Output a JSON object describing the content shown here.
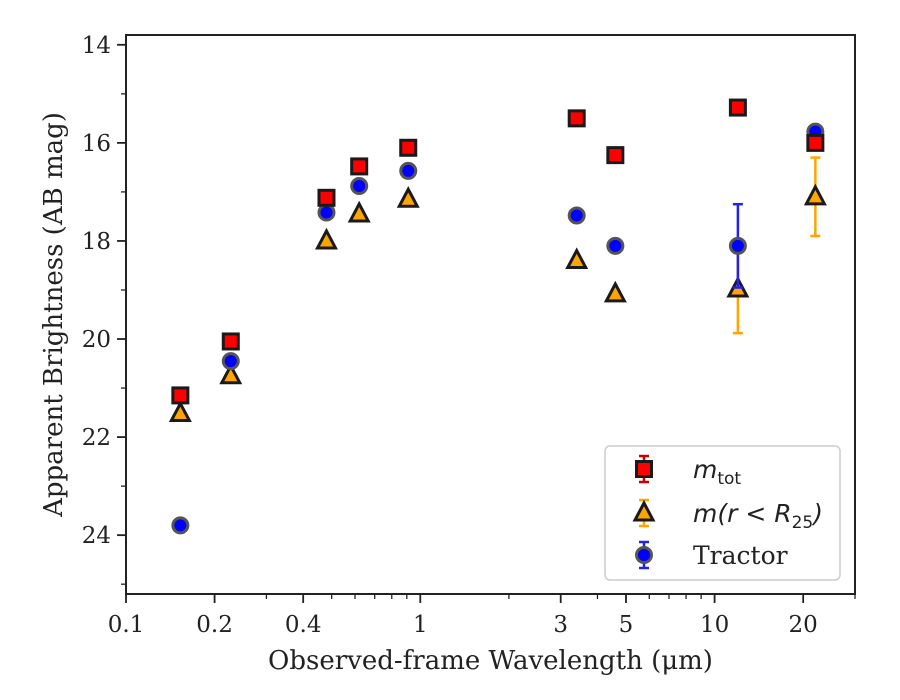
{
  "chart_data": {
    "type": "scatter",
    "title": "",
    "xlabel": "Observed-frame Wavelength (μm)",
    "ylabel": "Apparent Brightness (AB mag)",
    "xscale": "log",
    "xlim": [
      0.1,
      30
    ],
    "ylim": [
      25.2,
      13.8
    ],
    "y_inverted": true,
    "xticks": [
      {
        "value": 0.1,
        "label": "0.1"
      },
      {
        "value": 0.2,
        "label": "0.2"
      },
      {
        "value": 0.4,
        "label": "0.4"
      },
      {
        "value": 1,
        "label": "1"
      },
      {
        "value": 3,
        "label": "3"
      },
      {
        "value": 5,
        "label": "5"
      },
      {
        "value": 10,
        "label": "10"
      },
      {
        "value": 20,
        "label": "20"
      }
    ],
    "yticks": [
      {
        "value": 14,
        "label": "14"
      },
      {
        "value": 16,
        "label": "16"
      },
      {
        "value": 18,
        "label": "18"
      },
      {
        "value": 20,
        "label": "20"
      },
      {
        "value": 22,
        "label": "22"
      },
      {
        "value": 24,
        "label": "24"
      }
    ],
    "legend_position": "lower-right",
    "grid": false,
    "series": [
      {
        "key": "m_tot",
        "legend_main": "m",
        "legend_sub": "tot",
        "marker": "square",
        "color": "#ff0000",
        "errcolor": "#cc0000",
        "points": [
          {
            "x": 0.153,
            "y": 21.15,
            "err": 0.05
          },
          {
            "x": 0.227,
            "y": 20.05,
            "err": 0.05
          },
          {
            "x": 0.48,
            "y": 17.12,
            "err": 0.03
          },
          {
            "x": 0.62,
            "y": 16.48,
            "err": 0.03
          },
          {
            "x": 0.91,
            "y": 16.1,
            "err": 0.03
          },
          {
            "x": 3.4,
            "y": 15.5,
            "err": 0.03
          },
          {
            "x": 4.6,
            "y": 16.25,
            "err": 0.03
          },
          {
            "x": 12.0,
            "y": 15.28,
            "err": 0.03
          },
          {
            "x": 22.0,
            "y": 16.0,
            "err": 0.05
          }
        ]
      },
      {
        "key": "m_r_R25",
        "legend_main": "m(r < R",
        "legend_sub": "25",
        "legend_tail": ")",
        "marker": "triangle",
        "color": "#ffa500",
        "errcolor": "#ffa500",
        "points": [
          {
            "x": 0.153,
            "y": 21.52,
            "err": 0.05
          },
          {
            "x": 0.227,
            "y": 20.75,
            "err": 0.05
          },
          {
            "x": 0.48,
            "y": 18.0,
            "err": 0.03
          },
          {
            "x": 0.62,
            "y": 17.45,
            "err": 0.03
          },
          {
            "x": 0.91,
            "y": 17.15,
            "err": 0.03
          },
          {
            "x": 3.4,
            "y": 18.4,
            "err": 0.03
          },
          {
            "x": 4.6,
            "y": 19.08,
            "err": 0.05
          },
          {
            "x": 12.0,
            "y": 18.98,
            "err": 0.9
          },
          {
            "x": 22.0,
            "y": 17.1,
            "err": 0.8
          }
        ]
      },
      {
        "key": "tractor",
        "legend_main": "Tractor",
        "marker": "circle",
        "color": "#0000ff",
        "errcolor": "#2222ee",
        "points": [
          {
            "x": 0.153,
            "y": 23.8,
            "err": 0.05
          },
          {
            "x": 0.227,
            "y": 20.45,
            "err": 0.05
          },
          {
            "x": 0.48,
            "y": 17.42,
            "err": 0.03
          },
          {
            "x": 0.62,
            "y": 16.88,
            "err": 0.03
          },
          {
            "x": 0.91,
            "y": 16.57,
            "err": 0.03
          },
          {
            "x": 3.4,
            "y": 17.48,
            "err": 0.03
          },
          {
            "x": 4.6,
            "y": 18.1,
            "err": 0.03
          },
          {
            "x": 12.0,
            "y": 18.1,
            "err": 0.85
          },
          {
            "x": 22.0,
            "y": 15.77,
            "err": 0.05
          }
        ]
      }
    ]
  }
}
